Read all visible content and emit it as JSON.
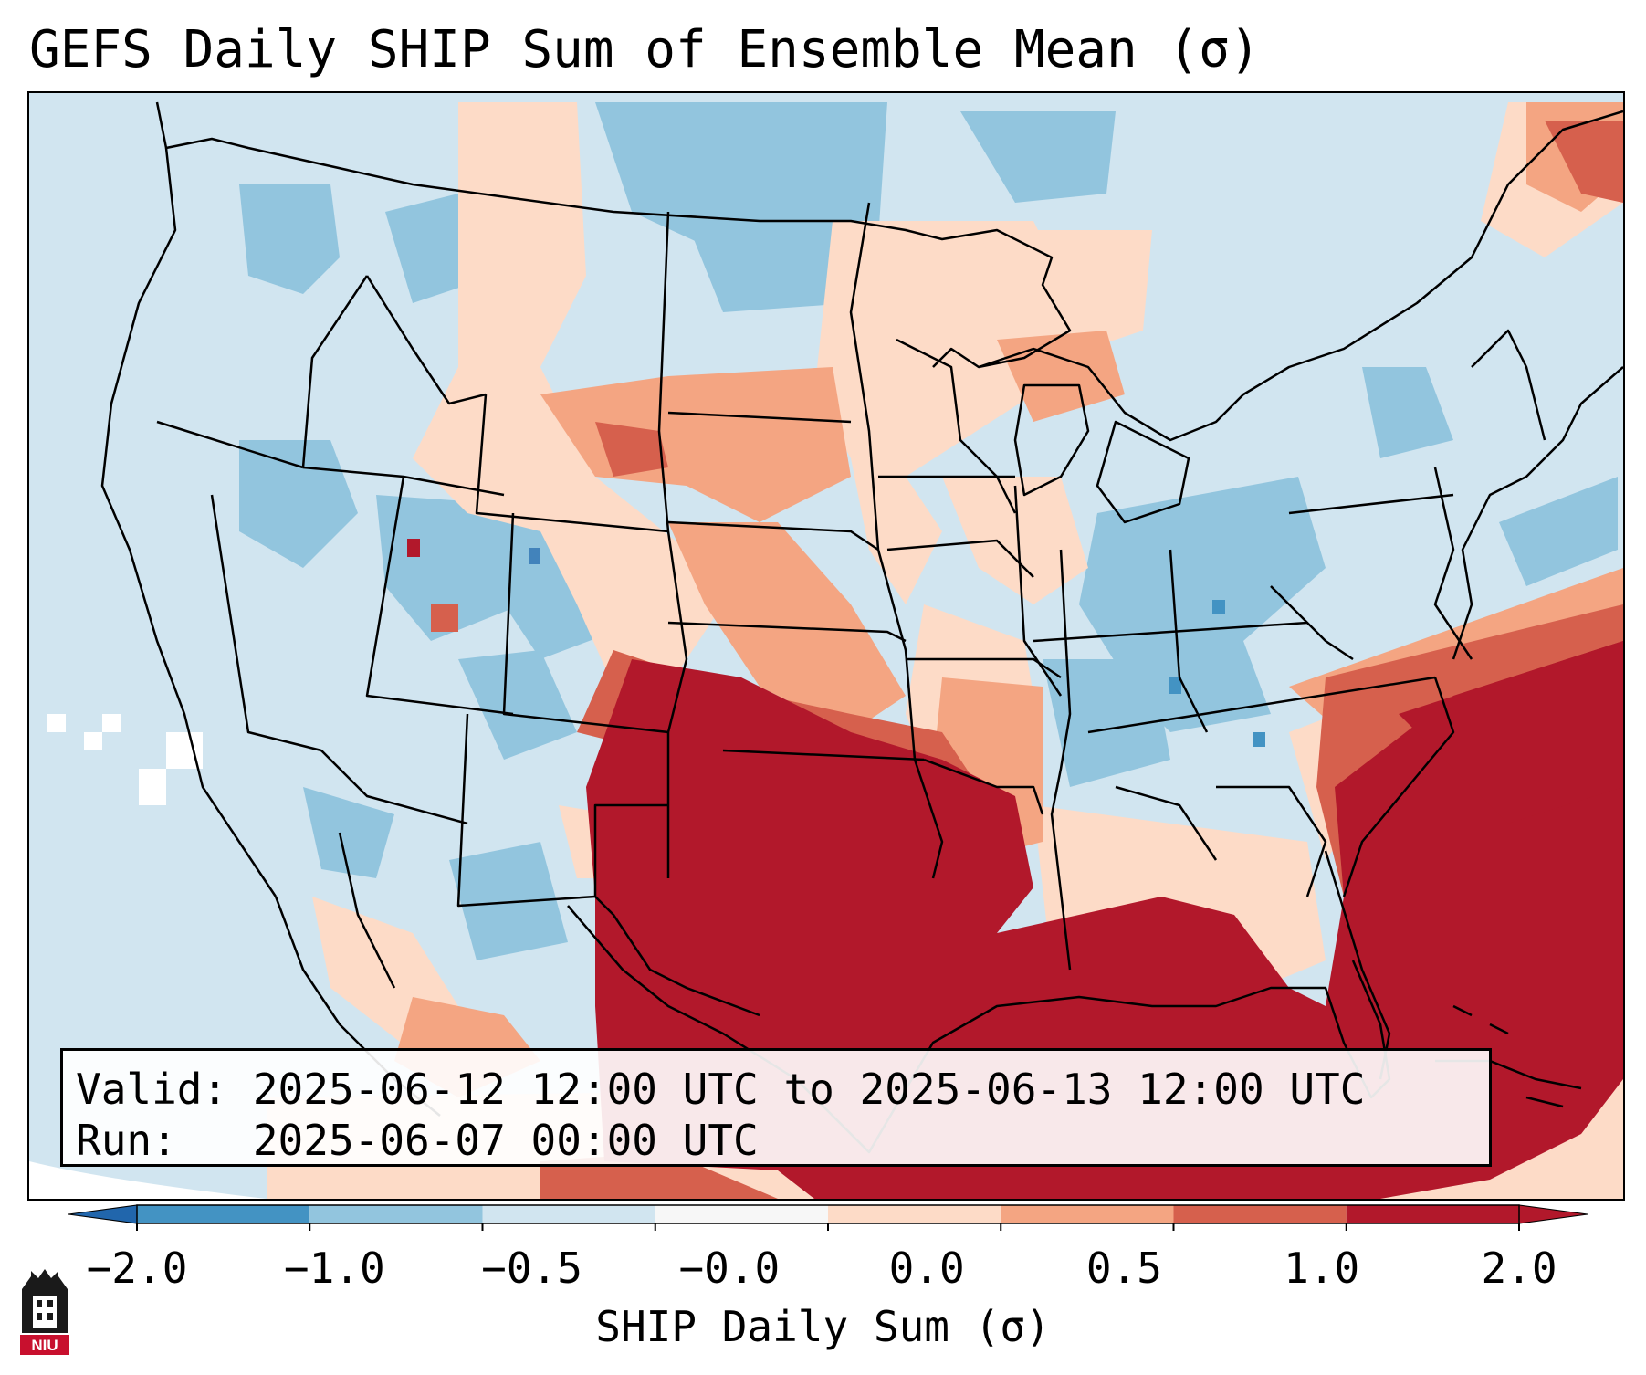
{
  "title": "GEFS Daily SHIP Sum of Ensemble Mean (σ)",
  "info": {
    "valid_line": "Valid: 2025-06-12 12:00 UTC to 2025-06-13 12:00 UTC",
    "run_line": "Run:   2025-06-07 00:00 UTC"
  },
  "colorbar": {
    "label": "SHIP Daily Sum (σ)",
    "tick_labels": [
      "−2.0",
      "−1.0",
      "−0.5",
      "−0.0",
      "0.0",
      "0.5",
      "1.0",
      "2.0"
    ],
    "bin_colors": [
      "#4393c3",
      "#92c5de",
      "#d1e5f0",
      "#f7f7f7",
      "#fddbc7",
      "#f4a582",
      "#d6604d",
      "#b2182b"
    ],
    "under_color": "#2166ac",
    "over_color": "#b2182b"
  },
  "map": {
    "ocean_color": "#d1e5f0",
    "outline_color": "#000000"
  },
  "logo": {
    "text": "NIU"
  }
}
